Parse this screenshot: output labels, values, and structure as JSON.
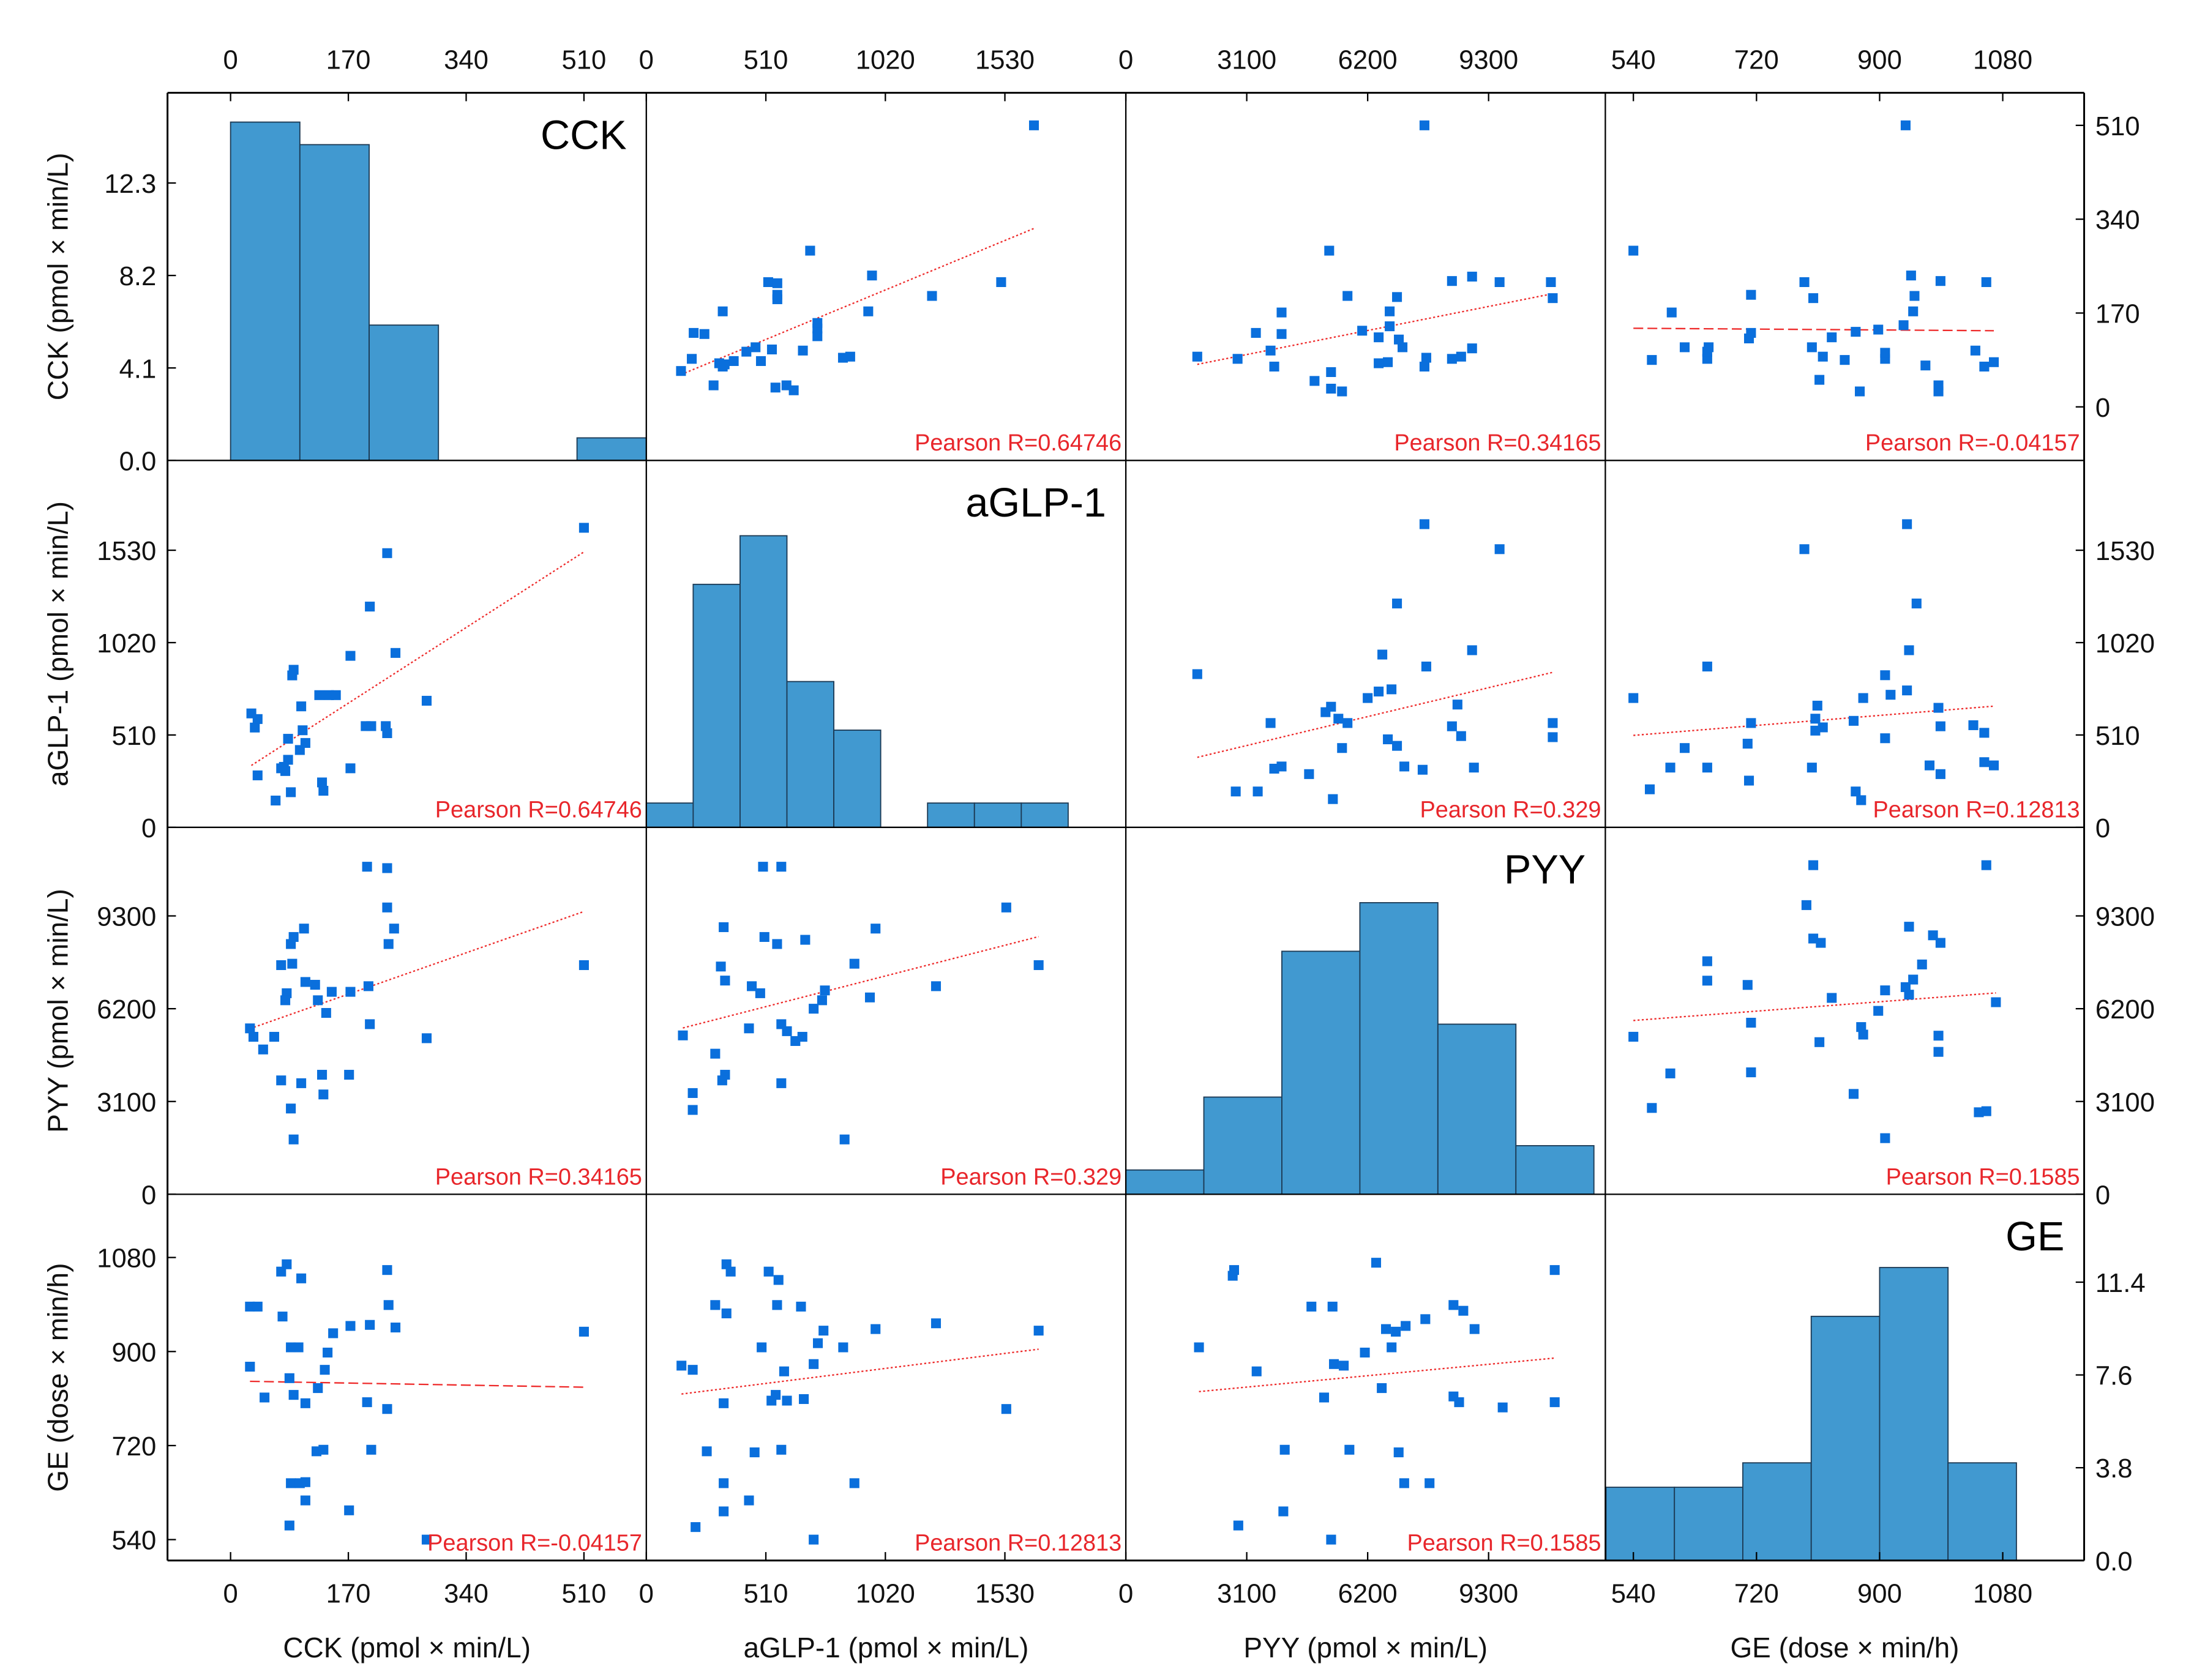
{
  "chart_data": {
    "type": "scatter",
    "title": "",
    "variables": [
      {
        "key": "CCK",
        "title": "CCK",
        "axis_label": "CCK (pmol × min/L)",
        "ticks": [
          "0",
          "170",
          "340",
          "510"
        ],
        "tick_values": [
          0,
          170,
          340,
          510
        ],
        "x_range": [
          -91,
          600
        ],
        "y_range": [
          -97,
          569
        ]
      },
      {
        "key": "aGLP1",
        "title": "aGLP-1",
        "axis_label": "aGLP-1 (pmol × min/L)",
        "ticks": [
          "0",
          "510",
          "1020",
          "1530"
        ],
        "tick_values": [
          0,
          510,
          1020,
          1530
        ],
        "x_range": [
          0,
          2046
        ],
        "y_range": [
          0,
          2026
        ]
      },
      {
        "key": "PYY",
        "title": "PYY",
        "axis_label": "PYY (pmol × min/L)",
        "ticks": [
          "0",
          "3100",
          "6200",
          "9300"
        ],
        "tick_values": [
          0,
          3100,
          6200,
          9300
        ],
        "x_range": [
          0,
          12293
        ],
        "y_range": [
          0,
          12259
        ]
      },
      {
        "key": "GE",
        "title": "GE",
        "axis_label": "GE (dose × min/h)",
        "ticks": [
          "540",
          "720",
          "900",
          "1080"
        ],
        "tick_values": [
          540,
          720,
          900,
          1080
        ],
        "x_range": [
          499,
          1199
        ],
        "y_range": [
          500,
          1201
        ]
      }
    ],
    "count_axes": {
      "CCK": {
        "ticks": [
          "0.0",
          "4.1",
          "8.2",
          "12.3"
        ],
        "tick_values": [
          0,
          4.1,
          8.2,
          12.3
        ],
        "side": "left"
      },
      "GE": {
        "ticks": [
          "0.0",
          "3.8",
          "7.6",
          "11.4"
        ],
        "tick_values": [
          0,
          3.8,
          7.6,
          11.4
        ],
        "side": "right"
      }
    },
    "histograms": [
      {
        "var": "CCK",
        "bin_start": 0,
        "bin_width": 100,
        "counts": [
          15,
          14,
          6,
          0,
          0,
          1
        ],
        "ylim": [
          0,
          16.3
        ]
      },
      {
        "var": "aGLP1",
        "bin_start": 0,
        "bin_width": 200,
        "counts": [
          1,
          10,
          12,
          6,
          4,
          0,
          1,
          1,
          1
        ],
        "ylim": [
          0,
          15.1
        ]
      },
      {
        "var": "PYY",
        "bin_start": 0,
        "bin_width": 2000,
        "counts": [
          1,
          4,
          10,
          12,
          7,
          2
        ],
        "ylim": [
          0,
          15.1
        ]
      },
      {
        "var": "GE",
        "bin_start": 500,
        "bin_width": 100,
        "counts": [
          3,
          3,
          4,
          10,
          12,
          4
        ],
        "ylim": [
          0,
          15
        ]
      }
    ],
    "pairs": [
      {
        "x": "CCK",
        "y": "aGLP1",
        "pearson_label": "Pearson R=0.64746",
        "line_style": "dotted",
        "points": [
          [
            510,
            1654
          ],
          [
            226,
            1514
          ],
          [
            201,
            1219
          ],
          [
            173,
            947
          ],
          [
            238,
            963
          ],
          [
            283,
            699
          ],
          [
            91,
            870
          ],
          [
            89,
            839
          ],
          [
            203,
            559
          ],
          [
            195,
            559
          ],
          [
            226,
            520
          ],
          [
            224,
            559
          ],
          [
            128,
            730
          ],
          [
            142,
            730
          ],
          [
            152,
            730
          ],
          [
            102,
            668
          ],
          [
            35,
            551
          ],
          [
            30,
            629
          ],
          [
            39,
            598
          ],
          [
            104,
            536
          ],
          [
            83,
            489
          ],
          [
            100,
            427
          ],
          [
            108,
            466
          ],
          [
            39,
            287
          ],
          [
            73,
            326
          ],
          [
            79,
            311
          ],
          [
            83,
            373
          ],
          [
            173,
            326
          ],
          [
            132,
            248
          ],
          [
            134,
            202
          ],
          [
            87,
            194
          ],
          [
            65,
            148
          ],
          [
            77,
            334
          ]
        ]
      },
      {
        "x": "CCK",
        "y": "PYY",
        "pearson_label": "Pearson R=0.34165",
        "line_style": "dotted",
        "points": [
          [
            197,
            10944
          ],
          [
            226,
            10897
          ],
          [
            226,
            9582
          ],
          [
            236,
            8877
          ],
          [
            228,
            8361
          ],
          [
            106,
            8877
          ],
          [
            91,
            8596
          ],
          [
            87,
            8361
          ],
          [
            89,
            7703
          ],
          [
            73,
            7656
          ],
          [
            510,
            7656
          ],
          [
            108,
            7093
          ],
          [
            122,
            6999
          ],
          [
            146,
            6764
          ],
          [
            81,
            6717
          ],
          [
            79,
            6482
          ],
          [
            126,
            6482
          ],
          [
            173,
            6764
          ],
          [
            199,
            6952
          ],
          [
            138,
            6059
          ],
          [
            201,
            5683
          ],
          [
            283,
            5214
          ],
          [
            28,
            5543
          ],
          [
            33,
            5261
          ],
          [
            63,
            5261
          ],
          [
            47,
            4838
          ],
          [
            73,
            3805
          ],
          [
            102,
            3711
          ],
          [
            171,
            3993
          ],
          [
            132,
            3993
          ],
          [
            134,
            3335
          ],
          [
            87,
            2865
          ],
          [
            91,
            1832
          ]
        ]
      },
      {
        "x": "CCK",
        "y": "GE",
        "pearson_label": "Pearson R=-0.04157",
        "line_style": "dashed",
        "points": [
          [
            81,
            1067
          ],
          [
            73,
            1053
          ],
          [
            102,
            1040
          ],
          [
            226,
            1056
          ],
          [
            28,
            986
          ],
          [
            39,
            986
          ],
          [
            228,
            989
          ],
          [
            75,
            967
          ],
          [
            201,
            951
          ],
          [
            173,
            949
          ],
          [
            148,
            935
          ],
          [
            238,
            946
          ],
          [
            510,
            938
          ],
          [
            87,
            908
          ],
          [
            98,
            908
          ],
          [
            140,
            898
          ],
          [
            28,
            871
          ],
          [
            136,
            865
          ],
          [
            85,
            849
          ],
          [
            126,
            830
          ],
          [
            49,
            812
          ],
          [
            91,
            817
          ],
          [
            108,
            801
          ],
          [
            197,
            803
          ],
          [
            226,
            790
          ],
          [
            124,
            709
          ],
          [
            134,
            712
          ],
          [
            203,
            712
          ],
          [
            87,
            648
          ],
          [
            100,
            648
          ],
          [
            108,
            650
          ],
          [
            108,
            615
          ],
          [
            171,
            596
          ],
          [
            85,
            567
          ],
          [
            283,
            540
          ]
        ]
      },
      {
        "x": "aGLP1",
        "y": "PYY",
        "pearson_label": "Pearson R=0.329",
        "line_style": "dotted",
        "points": [
          [
            498,
            10944
          ],
          [
            576,
            10944
          ],
          [
            1536,
            9582
          ],
          [
            978,
            8877
          ],
          [
            330,
            8924
          ],
          [
            504,
            8596
          ],
          [
            678,
            8502
          ],
          [
            558,
            8361
          ],
          [
            888,
            7703
          ],
          [
            1674,
            7656
          ],
          [
            318,
            7609
          ],
          [
            336,
            7140
          ],
          [
            1236,
            6952
          ],
          [
            450,
            6952
          ],
          [
            486,
            6717
          ],
          [
            762,
            6811
          ],
          [
            750,
            6482
          ],
          [
            954,
            6576
          ],
          [
            714,
            6200
          ],
          [
            156,
            5308
          ],
          [
            438,
            5543
          ],
          [
            576,
            5683
          ],
          [
            600,
            5449
          ],
          [
            636,
            5120
          ],
          [
            666,
            5261
          ],
          [
            294,
            4697
          ],
          [
            336,
            3993
          ],
          [
            324,
            3805
          ],
          [
            198,
            3382
          ],
          [
            198,
            2818
          ],
          [
            576,
            3711
          ],
          [
            846,
            1832
          ]
        ]
      },
      {
        "x": "aGLP1",
        "y": "GE",
        "pearson_label": "Pearson R=0.12813",
        "line_style": "dotted",
        "points": [
          [
            342,
            1067
          ],
          [
            360,
            1053
          ],
          [
            522,
            1053
          ],
          [
            564,
            1037
          ],
          [
            294,
            989
          ],
          [
            342,
            973
          ],
          [
            558,
            989
          ],
          [
            660,
            986
          ],
          [
            756,
            940
          ],
          [
            978,
            943
          ],
          [
            1674,
            940
          ],
          [
            1236,
            954
          ],
          [
            492,
            908
          ],
          [
            732,
            916
          ],
          [
            840,
            908
          ],
          [
            150,
            873
          ],
          [
            198,
            865
          ],
          [
            714,
            876
          ],
          [
            588,
            862
          ],
          [
            552,
            817
          ],
          [
            600,
            806
          ],
          [
            672,
            809
          ],
          [
            330,
            801
          ],
          [
            534,
            806
          ],
          [
            1536,
            790
          ],
          [
            258,
            709
          ],
          [
            462,
            707
          ],
          [
            576,
            712
          ],
          [
            330,
            648
          ],
          [
            888,
            648
          ],
          [
            438,
            615
          ],
          [
            330,
            594
          ],
          [
            210,
            564
          ],
          [
            714,
            540
          ]
        ]
      },
      {
        "x": "PYY",
        "y": "GE",
        "pearson_label": "Pearson R=0.1585",
        "line_style": "dotted",
        "points": [
          [
            6417,
            1070
          ],
          [
            2776,
            1056
          ],
          [
            2740,
            1045
          ],
          [
            10995,
            1056
          ],
          [
            4758,
            986
          ],
          [
            5299,
            986
          ],
          [
            8400,
            989
          ],
          [
            8652,
            978
          ],
          [
            7678,
            962
          ],
          [
            6669,
            943
          ],
          [
            6921,
            938
          ],
          [
            7173,
            949
          ],
          [
            8940,
            943
          ],
          [
            1875,
            908
          ],
          [
            6813,
            908
          ],
          [
            6128,
            898
          ],
          [
            5335,
            876
          ],
          [
            5587,
            873
          ],
          [
            3353,
            862
          ],
          [
            6561,
            830
          ],
          [
            5083,
            812
          ],
          [
            8400,
            814
          ],
          [
            8544,
            803
          ],
          [
            9661,
            793
          ],
          [
            10995,
            803
          ],
          [
            4074,
            712
          ],
          [
            5732,
            712
          ],
          [
            6994,
            707
          ],
          [
            7137,
            648
          ],
          [
            7786,
            648
          ],
          [
            4038,
            594
          ],
          [
            2884,
            567
          ],
          [
            5263,
            540
          ]
        ]
      }
    ],
    "colors": {
      "points": "#0a6fdc",
      "bars": "#4199d0",
      "bar_edge": "#1c3a55",
      "fit": "#ee2a2a",
      "text_red": "#e8262b"
    },
    "grid": false
  }
}
